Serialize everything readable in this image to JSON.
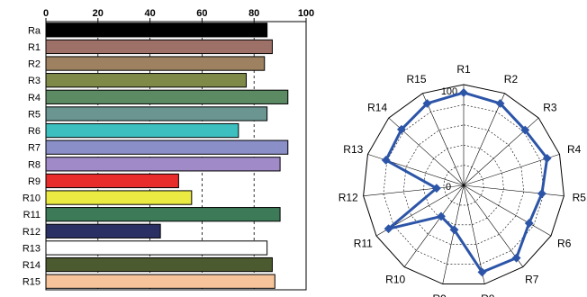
{
  "chart_data": [
    {
      "type": "bar",
      "orientation": "horizontal",
      "categories": [
        "Ra",
        "R1",
        "R2",
        "R3",
        "R4",
        "R5",
        "R6",
        "R7",
        "R8",
        "R9",
        "R10",
        "R11",
        "R12",
        "R13",
        "R14",
        "R15"
      ],
      "values": [
        85,
        87,
        84,
        77,
        93,
        85,
        74,
        93,
        90,
        51,
        56,
        90,
        44,
        85,
        87,
        88
      ],
      "colors": [
        "#000000",
        "#9e7168",
        "#9d8160",
        "#7f8a48",
        "#5b8a63",
        "#6a9591",
        "#3ebfbf",
        "#8a8fc8",
        "#a08bc8",
        "#e82b2b",
        "#eaea43",
        "#3c7a58",
        "#2a3063",
        "#ffffff",
        "#4c5a30",
        "#f7c39a"
      ],
      "xlim": [
        0,
        100
      ],
      "xticks": [
        "0",
        "20",
        "40",
        "60",
        "80",
        "100"
      ],
      "grid": "vertical dashed at 20-step",
      "title": "",
      "xlabel": "",
      "ylabel": ""
    },
    {
      "type": "radar",
      "axes": [
        "R1",
        "R2",
        "R3",
        "R4",
        "R5",
        "R6",
        "R7",
        "R8",
        "R9",
        "R10",
        "R11",
        "R12",
        "R13",
        "R14",
        "R15"
      ],
      "values": [
        92,
        89,
        82,
        87,
        78,
        75,
        89,
        88,
        45,
        38,
        86,
        27,
        81,
        83,
        89
      ],
      "range": [
        0,
        100
      ],
      "rings": 5,
      "range_labels": [
        "0",
        "100"
      ],
      "series_color": "#2c55a8"
    }
  ]
}
